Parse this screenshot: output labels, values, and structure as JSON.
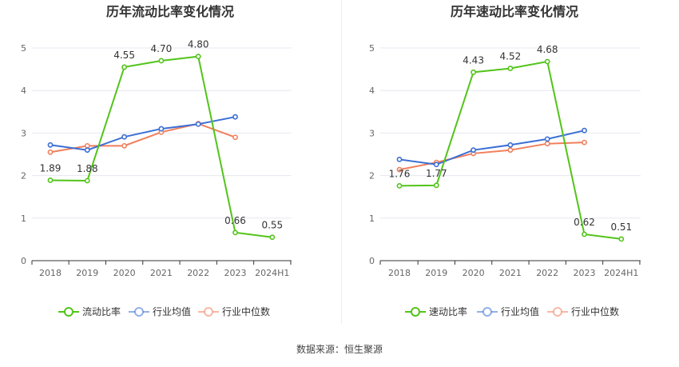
{
  "source_text": "数据来源：恒生聚源",
  "chart_data": [
    {
      "type": "line",
      "title": "历年流动比率变化情况",
      "categories": [
        "2018",
        "2019",
        "2020",
        "2021",
        "2022",
        "2023",
        "2024H1"
      ],
      "ylim": [
        0,
        5
      ],
      "yticks": [
        "0",
        "1",
        "2",
        "3",
        "4",
        "5"
      ],
      "grid": true,
      "legend_position": "bottom-center",
      "series": [
        {
          "name": "流动比率",
          "color": "#52c41a",
          "values": [
            1.89,
            1.88,
            4.55,
            4.7,
            4.8,
            0.66,
            0.55
          ],
          "labels": [
            "1.89",
            "1.88",
            "4.55",
            "4.70",
            "4.80",
            "0.66",
            "0.55"
          ]
        },
        {
          "name": "行业均值",
          "color": "#3b6fd4",
          "values": [
            2.72,
            2.6,
            2.91,
            3.1,
            3.21,
            3.38,
            null
          ]
        },
        {
          "name": "行业中位数",
          "color": "#f07f5b",
          "values": [
            2.55,
            2.7,
            2.7,
            3.02,
            3.22,
            2.9,
            null
          ]
        }
      ]
    },
    {
      "type": "line",
      "title": "历年速动比率变化情况",
      "categories": [
        "2018",
        "2019",
        "2020",
        "2021",
        "2022",
        "2023",
        "2024H1"
      ],
      "ylim": [
        0,
        5
      ],
      "yticks": [
        "0",
        "1",
        "2",
        "3",
        "4",
        "5"
      ],
      "grid": true,
      "legend_position": "bottom-center",
      "series": [
        {
          "name": "速动比率",
          "color": "#52c41a",
          "values": [
            1.76,
            1.77,
            4.43,
            4.52,
            4.68,
            0.62,
            0.51
          ],
          "labels": [
            "1.76",
            "1.77",
            "4.43",
            "4.52",
            "4.68",
            "0.62",
            "0.51"
          ]
        },
        {
          "name": "行业均值",
          "color": "#3b6fd4",
          "values": [
            2.38,
            2.26,
            2.6,
            2.72,
            2.86,
            3.06,
            null
          ]
        },
        {
          "name": "行业中位数",
          "color": "#f07f5b",
          "values": [
            2.14,
            2.31,
            2.52,
            2.6,
            2.75,
            2.78,
            null
          ]
        }
      ]
    }
  ]
}
